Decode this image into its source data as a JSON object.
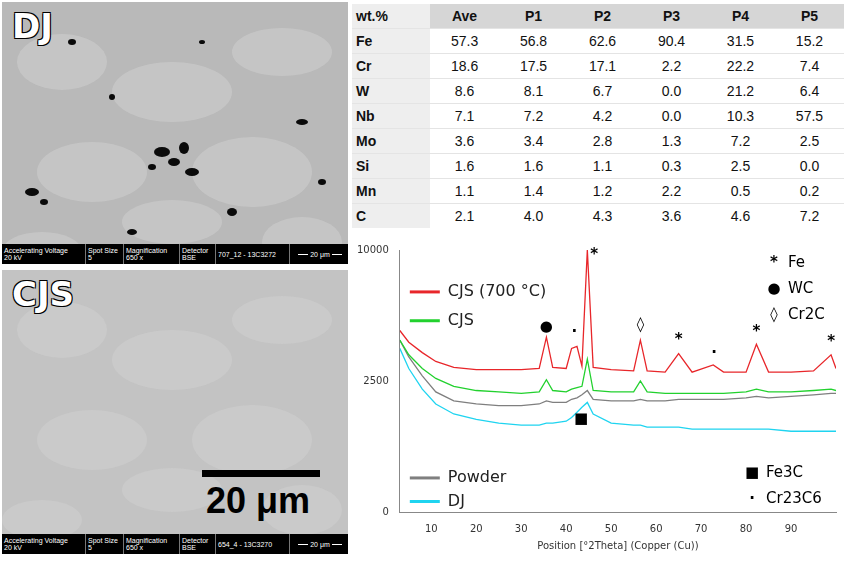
{
  "panels": [
    {
      "label": "DJ",
      "footer": {
        "fields": [
          {
            "name": "Accelerating Voltage",
            "value": "20 kV"
          },
          {
            "name": "Spot Size",
            "value": "5"
          },
          {
            "name": "Magnification",
            "value": "650 x"
          },
          {
            "name": "Detector",
            "value": "BSE"
          }
        ],
        "sample": "707_12 - 13C3272",
        "scale": "20 μm"
      }
    },
    {
      "label": "CJS",
      "footer": {
        "fields": [
          {
            "name": "Accelerating Voltage",
            "value": "20 kV"
          },
          {
            "name": "Spot Size",
            "value": "5"
          },
          {
            "name": "Magnification",
            "value": "650 x"
          },
          {
            "name": "Detector",
            "value": "BSE"
          }
        ],
        "sample": "654_4 - 13C3270",
        "scale": "20 μm"
      },
      "scale_bar": "20 μm"
    }
  ],
  "table": {
    "header": [
      "wt.%",
      "Ave",
      "P1",
      "P2",
      "P3",
      "P4",
      "P5"
    ],
    "rows": [
      [
        "Fe",
        "57.3",
        "56.8",
        "62.6",
        "90.4",
        "31.5",
        "15.2"
      ],
      [
        "Cr",
        "18.6",
        "17.5",
        "17.1",
        "2.2",
        "22.2",
        "7.4"
      ],
      [
        "W",
        "8.6",
        "8.1",
        "6.7",
        "0.0",
        "21.2",
        "6.4"
      ],
      [
        "Nb",
        "7.1",
        "7.2",
        "4.2",
        "0.0",
        "10.3",
        "57.5"
      ],
      [
        "Mo",
        "3.6",
        "3.4",
        "2.8",
        "1.3",
        "7.2",
        "2.5"
      ],
      [
        "Si",
        "1.6",
        "1.6",
        "1.1",
        "0.3",
        "2.5",
        "0.0"
      ],
      [
        "Mn",
        "1.1",
        "1.4",
        "1.2",
        "2.2",
        "0.5",
        "0.2"
      ],
      [
        "C",
        "2.1",
        "4.0",
        "4.3",
        "3.6",
        "4.6",
        "7.2"
      ]
    ]
  },
  "chart_data": {
    "type": "line",
    "x_label": "Position [°2Theta] (Copper (Cu))",
    "x": [
      3,
      5,
      8,
      11,
      15,
      20,
      25,
      30,
      34,
      35.6,
      37,
      40,
      41.2,
      42.4,
      43.5,
      44.7,
      46,
      50,
      55,
      56.5,
      58,
      62,
      65,
      68,
      72.7,
      75,
      80,
      82.3,
      85,
      90,
      95,
      98.9,
      100
    ],
    "series": [
      {
        "name": "CJS (700 °C)",
        "color": "#e8262a",
        "values": [
          4800,
          4200,
          3700,
          3300,
          3050,
          2950,
          2950,
          2950,
          3000,
          4450,
          3050,
          3000,
          3900,
          4000,
          3100,
          10000,
          3050,
          2950,
          2900,
          4300,
          2900,
          2850,
          3650,
          2850,
          3150,
          2850,
          2850,
          4100,
          2850,
          2850,
          2900,
          3600,
          3000
        ]
      },
      {
        "name": "CJS",
        "color": "#22d12e",
        "values": [
          4300,
          3600,
          3000,
          2600,
          2300,
          2150,
          2100,
          2050,
          2100,
          2550,
          2150,
          2100,
          2200,
          2250,
          2300,
          3400,
          2150,
          2100,
          2100,
          2500,
          2100,
          2050,
          2050,
          2050,
          2050,
          2050,
          2100,
          2200,
          2100,
          2100,
          2150,
          2200,
          2150
        ]
      },
      {
        "name": "Powder",
        "color": "#7f7f7f",
        "values": [
          4300,
          3500,
          2700,
          2100,
          1800,
          1700,
          1650,
          1650,
          1700,
          1800,
          1750,
          1750,
          1850,
          1900,
          2000,
          2150,
          1850,
          1800,
          1800,
          1850,
          1800,
          1800,
          1850,
          1850,
          1850,
          1850,
          1900,
          1950,
          1900,
          1950,
          2000,
          2050,
          2050
        ]
      },
      {
        "name": "DJ",
        "color": "#1fd4f0",
        "values": [
          3900,
          3000,
          2200,
          1700,
          1400,
          1250,
          1150,
          1100,
          1100,
          1150,
          1150,
          1200,
          1300,
          1450,
          1600,
          1750,
          1400,
          1150,
          1100,
          1100,
          1050,
          1050,
          1050,
          1000,
          1000,
          1000,
          1000,
          1000,
          1000,
          950,
          950,
          950,
          950
        ]
      }
    ],
    "xlim": [
      3,
      100
    ],
    "xticks": [
      10,
      20,
      30,
      40,
      50,
      60,
      70,
      80,
      90
    ],
    "ylim": [
      0,
      10000
    ],
    "yticks": [
      0,
      2500,
      10000
    ],
    "grid": false,
    "legend": "left",
    "annotations": [
      {
        "text": "*",
        "x": 46.2,
        "y": 9600
      },
      {
        "text": "●",
        "x": 35.6,
        "y": 5000
      },
      {
        "text": "·",
        "x": 41.8,
        "y": 4700
      },
      {
        "text": "◊",
        "x": 56.5,
        "y": 5100
      },
      {
        "text": "*",
        "x": 65,
        "y": 4300
      },
      {
        "text": "·",
        "x": 72.9,
        "y": 3700
      },
      {
        "text": "*",
        "x": 82.3,
        "y": 4700
      },
      {
        "text": "*",
        "x": 98.9,
        "y": 4200
      },
      {
        "text": "■",
        "x": 43.3,
        "y": 1250
      }
    ],
    "phase_key": [
      {
        "symbol": "*",
        "label": "Fe"
      },
      {
        "symbol": "●",
        "label": "WC"
      },
      {
        "symbol": "◊",
        "label": "Cr2C"
      },
      {
        "symbol": "■",
        "label": "Fe3C"
      },
      {
        "symbol": "·",
        "label": "Cr23C6"
      }
    ]
  }
}
